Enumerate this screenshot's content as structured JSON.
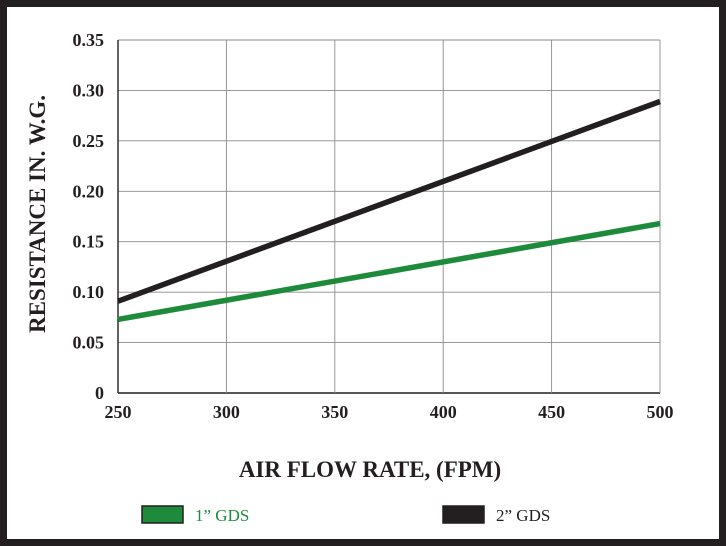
{
  "chart_data": {
    "type": "line",
    "title": "",
    "xlabel": "AIR FLOW RATE, (FPM)",
    "ylabel": "RESISTANCE IN. W.G.",
    "xlim": [
      250,
      500
    ],
    "ylim": [
      0,
      0.35
    ],
    "x_ticks": [
      "250",
      "300",
      "350",
      "400",
      "450",
      "500"
    ],
    "y_ticks": [
      "0",
      "0.05",
      "0.10",
      "0.15",
      "0.20",
      "0.25",
      "0.30",
      "0.35"
    ],
    "grid": true,
    "legend_position": "bottom",
    "series": [
      {
        "name": "1” GDS",
        "color": "#1e8a3c",
        "x": [
          250,
          500
        ],
        "y": [
          0.073,
          0.168
        ]
      },
      {
        "name": "2” GDS",
        "color": "#231f20",
        "x": [
          250,
          500
        ],
        "y": [
          0.091,
          0.289
        ]
      }
    ]
  }
}
